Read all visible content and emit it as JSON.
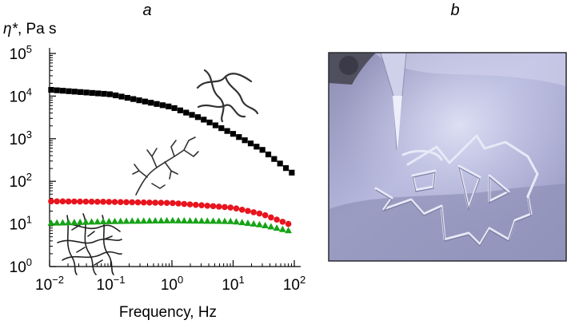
{
  "panels": {
    "a_label": "a",
    "b_label": "b"
  },
  "chart_data": {
    "type": "scatter",
    "ylabel_symbol": "η*",
    "ylabel_units": ", Pa s",
    "xlabel": "Frequency, Hz",
    "x_scale": "log",
    "y_scale": "log",
    "xlim": [
      0.01,
      100
    ],
    "ylim": [
      1,
      100000
    ],
    "x_ticks": [
      {
        "base": "10",
        "exp": "−2",
        "value": 0.01
      },
      {
        "base": "10",
        "exp": "−1",
        "value": 0.1
      },
      {
        "base": "10",
        "exp": "0",
        "value": 1
      },
      {
        "base": "10",
        "exp": "1",
        "value": 10
      },
      {
        "base": "10",
        "exp": "2",
        "value": 100
      }
    ],
    "y_ticks": [
      {
        "base": "10",
        "exp": "0",
        "value": 1
      },
      {
        "base": "10",
        "exp": "1",
        "value": 10
      },
      {
        "base": "10",
        "exp": "2",
        "value": 100
      },
      {
        "base": "10",
        "exp": "3",
        "value": 1000
      },
      {
        "base": "10",
        "exp": "4",
        "value": 10000
      },
      {
        "base": "10",
        "exp": "5",
        "value": 100000
      }
    ],
    "series": [
      {
        "marker": "square",
        "color": "#000000",
        "x": [
          0.0106,
          0.1,
          1,
          3,
          10,
          30,
          91
        ],
        "y": [
          14000,
          11000,
          5500,
          3000,
          1300,
          550,
          160
        ]
      },
      {
        "marker": "circle",
        "color": "#e8141e",
        "x": [
          0.0106,
          0.1,
          1,
          10,
          30,
          80
        ],
        "y": [
          34,
          33,
          31,
          24,
          17,
          10
        ]
      },
      {
        "marker": "triangle",
        "color": "#17a317",
        "x": [
          0.0106,
          0.1,
          1,
          10,
          30,
          80
        ],
        "y": [
          10.5,
          11.5,
          12,
          11.5,
          9.5,
          7
        ]
      }
    ]
  }
}
